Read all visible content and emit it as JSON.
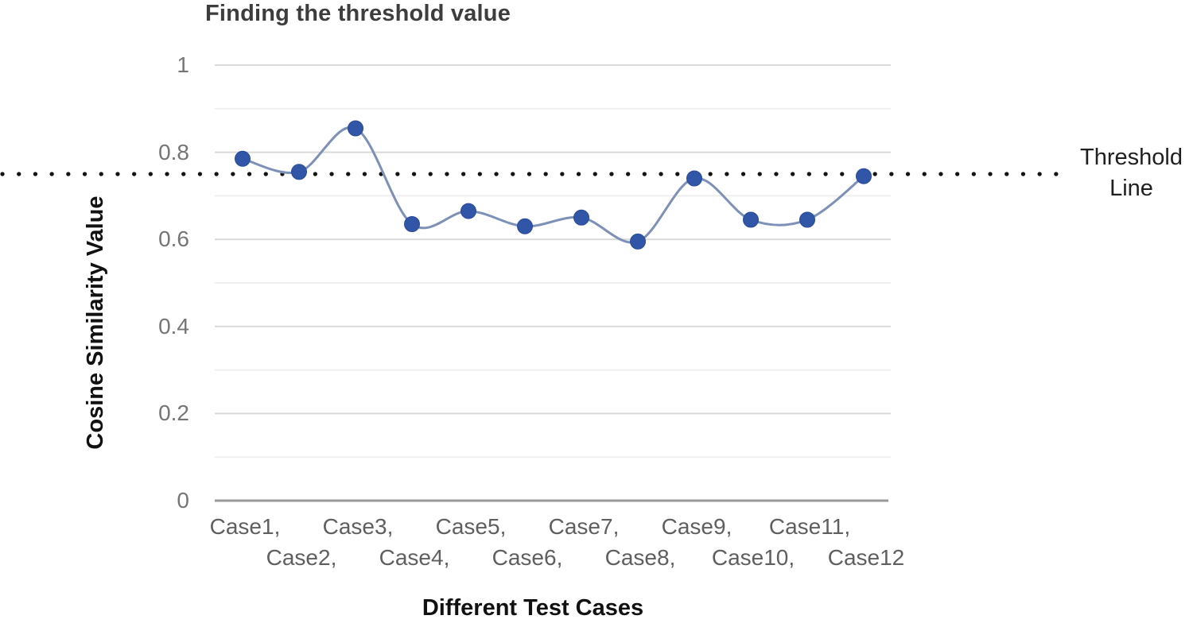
{
  "chart_data": {
    "type": "line",
    "title": "Finding the threshold value",
    "xlabel": "Different Test Cases",
    "ylabel": "Cosine Similarity Value",
    "categories": [
      "Case1",
      "Case2",
      "Case3",
      "Case4",
      "Case5",
      "Case6",
      "Case7",
      "Case8",
      "Case9",
      "Case10",
      "Case11",
      "Case12"
    ],
    "category_tick_labels": [
      "Case1,",
      "Case2,",
      "Case3,",
      "Case4,",
      "Case5,",
      "Case6,",
      "Case7,",
      "Case8,",
      "Case9,",
      "Case10,",
      "Case11,",
      "Case12"
    ],
    "series": [
      {
        "name": "Cosine Similarity Value",
        "values": [
          0.785,
          0.755,
          0.855,
          0.635,
          0.665,
          0.63,
          0.65,
          0.595,
          0.74,
          0.645,
          0.645,
          0.745
        ]
      }
    ],
    "threshold": {
      "value": 0.75,
      "label": "Threshold\nLine",
      "style": "dotted"
    },
    "ylim": [
      0,
      1
    ],
    "y_tick_labels": [
      "1",
      "0.8",
      "0.6",
      "0.4",
      "0.2",
      "0"
    ],
    "y_tick_values": [
      1,
      0.8,
      0.6,
      0.4,
      0.2,
      0
    ],
    "minor_gridline_values": [
      0.9,
      0.7,
      0.5,
      0.3,
      0.1
    ],
    "grid": true,
    "legend_position": "none",
    "colors": {
      "point": "#3156a8",
      "point_edge": "#2a4a99",
      "line": "#7d90b8",
      "threshold_dots": "#141414",
      "major_gridline": "#d9d9d9",
      "minor_gridline": "#efefef",
      "axis_line": "#999999",
      "title_text": "#3d3d3d",
      "y_tick_text": "#757575",
      "x_tick_text": "#5f5f5f",
      "axis_title_text": "#111111",
      "threshold_label_text": "#1f1f1f"
    }
  }
}
